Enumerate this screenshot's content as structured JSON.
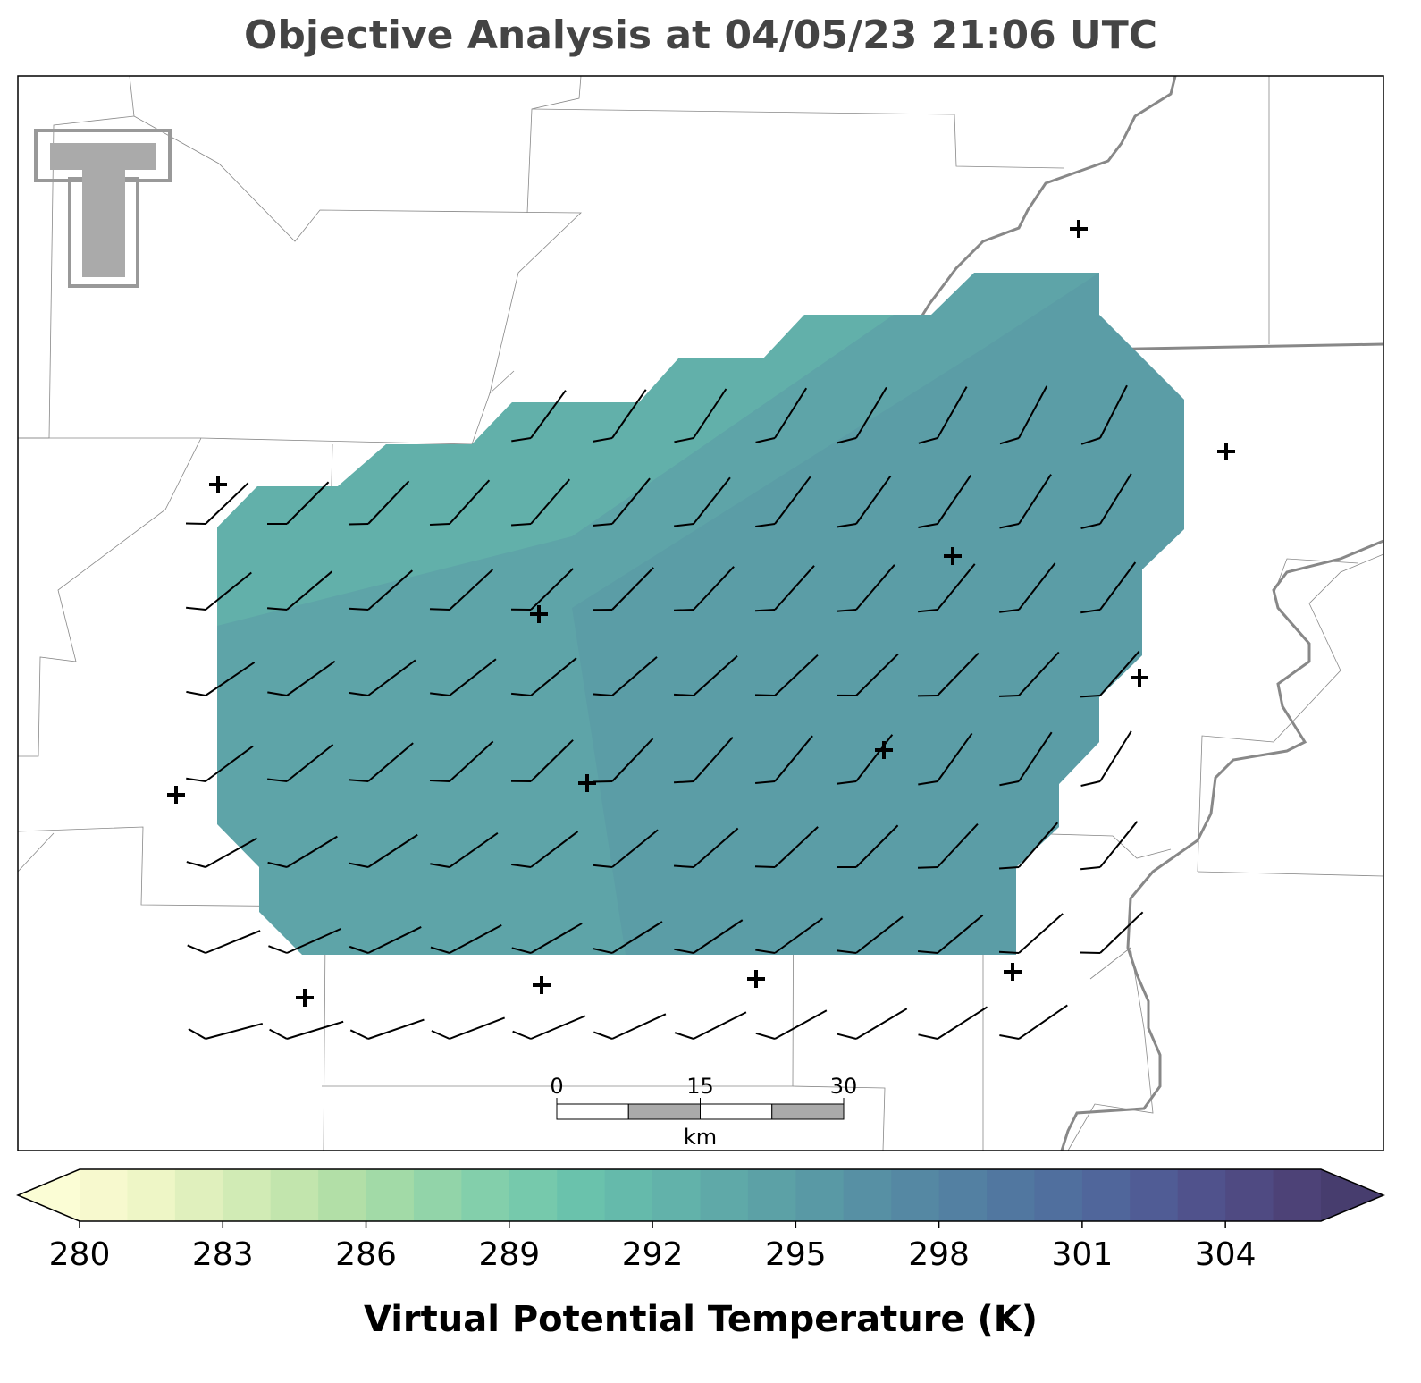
{
  "header": {
    "title": "Objective Analysis at 04/05/23 21:06 UTC"
  },
  "chart_data": {
    "type": "colorbar",
    "label": "Virtual Potential Temperature (K)",
    "clim": [
      280,
      306
    ],
    "ticks": [
      280,
      283,
      286,
      289,
      292,
      295,
      298,
      301,
      304
    ],
    "colors": [
      "#f7f9ce",
      "#eef6c6",
      "#e0f0bd",
      "#d1ebb5",
      "#c2e5ad",
      "#b2dfa7",
      "#a2daa7",
      "#92d4a9",
      "#83cfab",
      "#76c9ac",
      "#6ac2ac",
      "#65baab",
      "#62b2aa",
      "#5fa9a8",
      "#5ca1a6",
      "#5999a5",
      "#5790a4",
      "#5588a3",
      "#5380a2",
      "#5177a0",
      "#506f9e",
      "#50669b",
      "#505c95",
      "#50528c",
      "#4f4a82",
      "#4d4277"
    ],
    "under_color": "#fbfdd5",
    "over_color": "#473d6e"
  },
  "scale_bar": {
    "ticks": [
      0,
      15,
      30
    ],
    "unit": "km"
  }
}
